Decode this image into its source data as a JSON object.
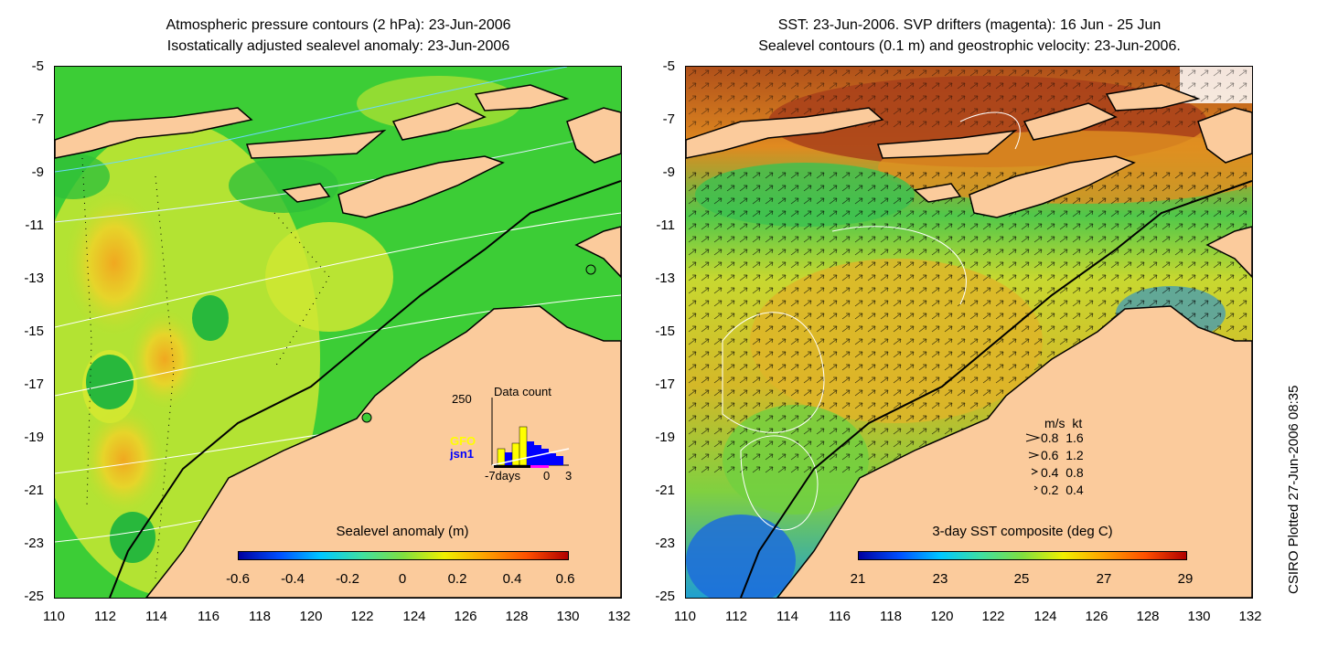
{
  "left_panel": {
    "title_line1": "Atmospheric pressure contours (2 hPa): 23-Jun-2006",
    "title_line2": "Isostatically adjusted sealevel anomaly: 23-Jun-2006",
    "y_ticks": [
      "-5",
      "-7",
      "-9",
      "-11",
      "-13",
      "-15",
      "-17",
      "-19",
      "-21",
      "-23",
      "-25"
    ],
    "x_ticks": [
      "110",
      "112",
      "114",
      "116",
      "118",
      "120",
      "122",
      "124",
      "126",
      "128",
      "130",
      "132"
    ],
    "colorbar": {
      "title": "Sealevel anomaly (m)",
      "ticks": [
        "-0.6",
        "-0.4",
        "-0.2",
        "0",
        "0.2",
        "0.4",
        "0.6"
      ]
    },
    "inset": {
      "title": "Data count",
      "y_max_label": "250",
      "x_labels": [
        "-7days",
        "0",
        "3"
      ],
      "series_labels": [
        "GFO",
        "jsn1"
      ],
      "series_colors": [
        "#ffff00",
        "#0000ff"
      ]
    }
  },
  "right_panel": {
    "title_line1": "SST: 23-Jun-2006. SVP drifters (magenta): 16 Jun - 25 Jun",
    "title_line2": "Sealevel contours (0.1 m) and geostrophic velocity: 23-Jun-2006.",
    "y_ticks": [
      "-5",
      "-7",
      "-9",
      "-11",
      "-13",
      "-15",
      "-17",
      "-19",
      "-21",
      "-23",
      "-25"
    ],
    "x_ticks": [
      "110",
      "112",
      "114",
      "116",
      "118",
      "120",
      "122",
      "124",
      "126",
      "128",
      "130",
      "132"
    ],
    "colorbar": {
      "title": "3-day SST composite (deg C)",
      "ticks": [
        "21",
        "23",
        "25",
        "27",
        "29"
      ]
    },
    "velocity_legend": {
      "header": "m/s  kt",
      "rows": [
        "0.8  1.6",
        "0.6  1.2",
        "0.4  0.8",
        "0.2  0.4"
      ]
    }
  },
  "credit": "CSIRO Plotted 27-Jun-2006 08:35",
  "colors": {
    "land": "#fbcb9c",
    "sea_green": "#3ccd36",
    "sea_yellow": "#d4e830",
    "sst_orange": "#e88a20",
    "sst_dark": "#a03c10",
    "sst_cold": "#1c6cdc"
  }
}
